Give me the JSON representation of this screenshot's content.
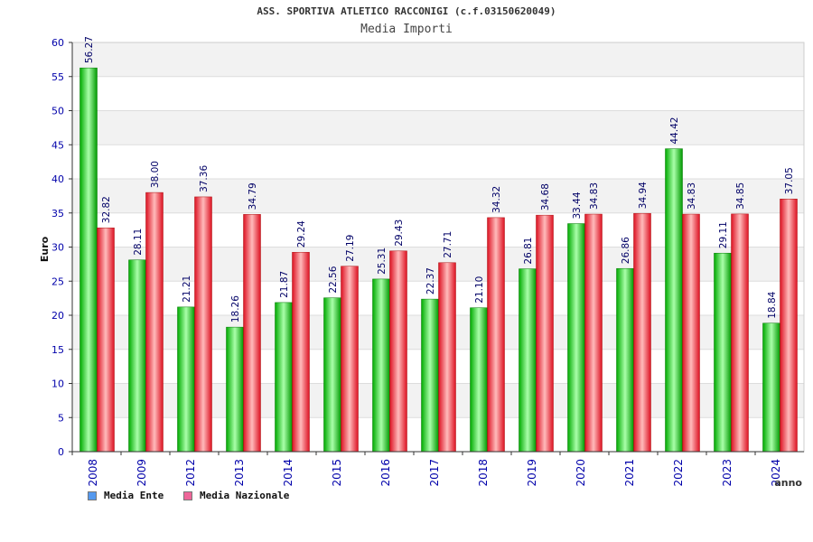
{
  "chart_data": {
    "type": "bar",
    "title": "ASS. SPORTIVA ATLETICO RACCONIGI (c.f.03150620049)",
    "subtitle": "Media Importi",
    "xlabel": "anno",
    "ylabel": "Euro",
    "ylim": [
      0,
      60
    ],
    "ytick_step": 5,
    "categories": [
      "2008",
      "2009",
      "2012",
      "2013",
      "2014",
      "2015",
      "2016",
      "2017",
      "2018",
      "2019",
      "2020",
      "2021",
      "2022",
      "2023",
      "2024"
    ],
    "series": [
      {
        "name": "Media Ente",
        "color": "#00bb00",
        "values": [
          56.27,
          28.11,
          21.21,
          18.26,
          21.87,
          22.56,
          25.31,
          22.37,
          21.1,
          26.81,
          33.44,
          26.86,
          44.42,
          29.11,
          18.84
        ],
        "labels": [
          "56.27",
          "28.11",
          "21.21",
          "18.26",
          "21.87",
          "22.56",
          "25.31",
          "22.37",
          "21.10",
          "26.81",
          "33.44",
          "26.86",
          "44.42",
          "29.11",
          "18.84"
        ]
      },
      {
        "name": "Media Nazionale",
        "color": "#ee2233",
        "values": [
          32.82,
          38.0,
          37.36,
          34.79,
          29.24,
          27.19,
          29.43,
          27.71,
          34.32,
          34.68,
          34.83,
          34.94,
          34.83,
          34.85,
          37.05
        ],
        "labels": [
          "32.82",
          "38.00",
          "37.36",
          "34.79",
          "29.24",
          "27.19",
          "29.43",
          "27.71",
          "34.32",
          "34.68",
          "34.83",
          "34.94",
          "34.83",
          "34.85",
          "37.05"
        ]
      }
    ]
  },
  "legend": {
    "ente_label": "Media Ente",
    "ente_color": "#5599ee",
    "nazionale_label": "Media Nazionale",
    "nazionale_color": "#ee6699"
  }
}
